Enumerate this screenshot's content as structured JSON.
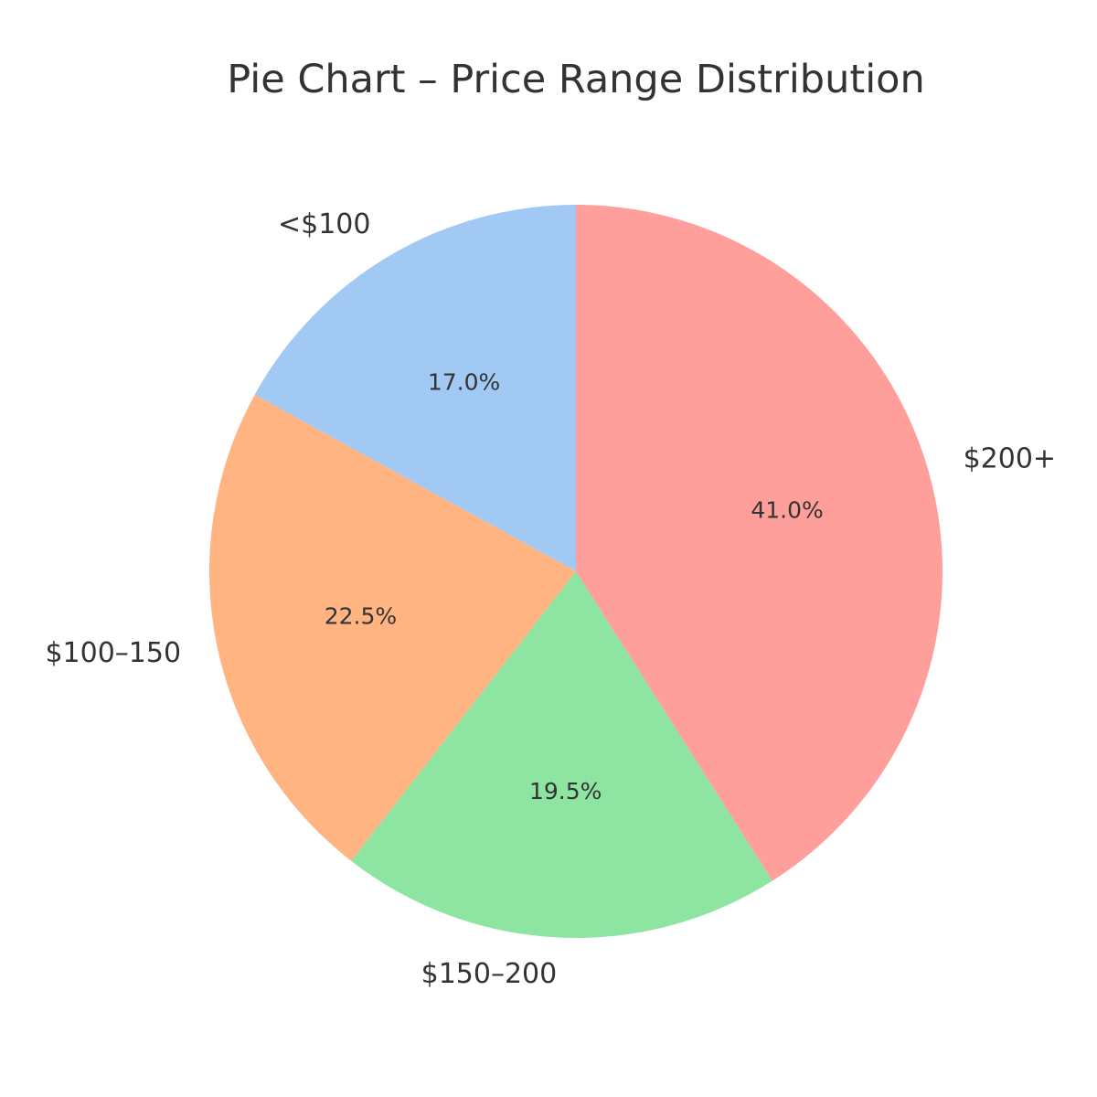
{
  "chart_data": {
    "type": "pie",
    "title": "Pie Chart – Price Range Distribution",
    "start": "top",
    "direction": "counterclockwise",
    "slices": [
      {
        "label": "<$100",
        "value": 17.0,
        "pct_label": "17.0%",
        "color": "#a1c9f4"
      },
      {
        "label": "$100–150",
        "value": 22.5,
        "pct_label": "22.5%",
        "color": "#ffb482"
      },
      {
        "label": "$150–200",
        "value": 19.5,
        "pct_label": "19.5%",
        "color": "#8de5a1"
      },
      {
        "label": "$200+",
        "value": 41.0,
        "pct_label": "41.0%",
        "color": "#ff9f9b"
      }
    ],
    "legend": "none",
    "text_color": "#333333"
  }
}
